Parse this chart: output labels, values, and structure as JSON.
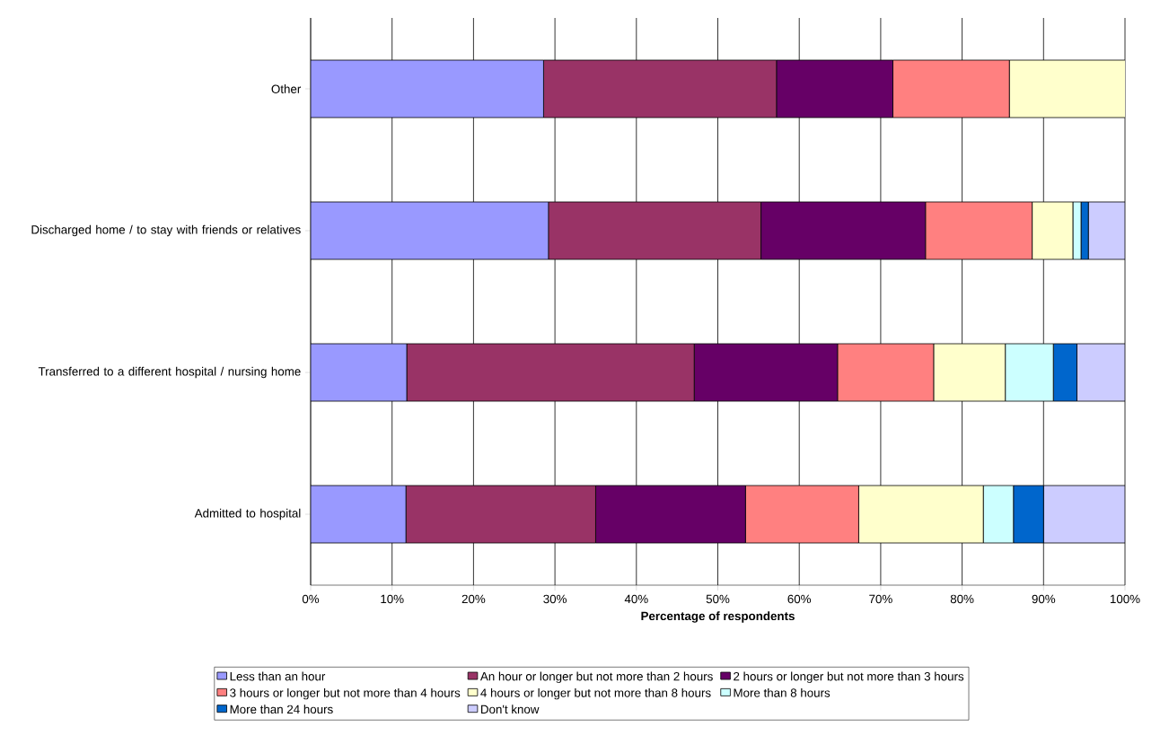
{
  "chart_data": {
    "type": "bar",
    "orientation": "horizontal",
    "stacked": true,
    "categories": [
      "Other",
      "Discharged home / to stay with friends or relatives",
      "Transferred to a different hospital / nursing home",
      "Admitted to hospital"
    ],
    "series": [
      {
        "name": "Less than an hour",
        "color": "#9999ff",
        "values": [
          28.6,
          29.2,
          11.8,
          11.7
        ]
      },
      {
        "name": "An hour or longer but not more than 2 hours",
        "color": "#993366",
        "values": [
          28.6,
          26.1,
          35.3,
          23.3
        ]
      },
      {
        "name": "2 hours or longer but not more than 3 hours",
        "color": "#660066",
        "values": [
          14.3,
          20.2,
          17.6,
          18.4
        ]
      },
      {
        "name": "3 hours or longer but not more than 4 hours",
        "color": "#ff8080",
        "values": [
          14.3,
          13.1,
          11.8,
          13.9
        ]
      },
      {
        "name": "4 hours or longer but not more than 8 hours",
        "color": "#ffffcc",
        "values": [
          14.3,
          5.0,
          8.8,
          15.3
        ]
      },
      {
        "name": "More than 8 hours",
        "color": "#ccffff",
        "values": [
          null,
          1.0,
          5.9,
          3.7
        ]
      },
      {
        "name": "More than 24 hours",
        "color": "#0066cc",
        "values": [
          null,
          0.9,
          2.9,
          3.7
        ]
      },
      {
        "name": "Don't know",
        "color": "#ccccff",
        "values": [
          null,
          4.5,
          5.9,
          10.0
        ]
      }
    ],
    "xlabel": "Percentage of respondents",
    "xlim": [
      0,
      100
    ],
    "xticks": [
      {
        "value": 0,
        "label": "0%"
      },
      {
        "value": 10,
        "label": "10%"
      },
      {
        "value": 20,
        "label": "20%"
      },
      {
        "value": 30,
        "label": "30%"
      },
      {
        "value": 40,
        "label": "40%"
      },
      {
        "value": 50,
        "label": "50%"
      },
      {
        "value": 60,
        "label": "60%"
      },
      {
        "value": 70,
        "label": "70%"
      },
      {
        "value": 80,
        "label": "80%"
      },
      {
        "value": 90,
        "label": "90%"
      },
      {
        "value": 100,
        "label": "100%"
      }
    ],
    "grid": "x",
    "legend": "bottom"
  }
}
